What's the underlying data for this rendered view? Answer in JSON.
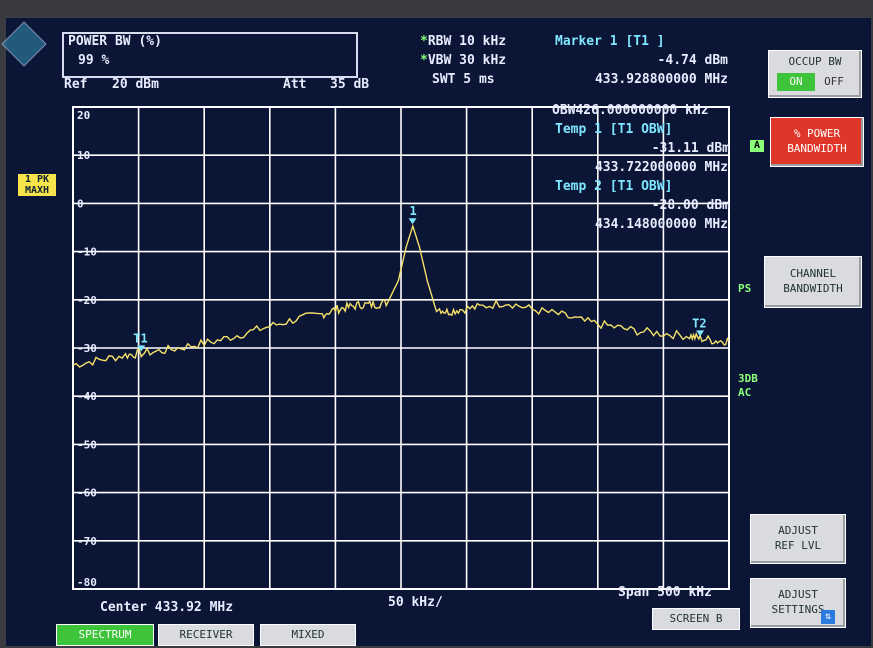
{
  "header": {
    "power_bw_title": "POWER BW (%)",
    "power_bw_value": "99 %",
    "ref_label": "Ref",
    "ref_value": "20 dBm",
    "att_label": "Att",
    "att_value": "35 dB",
    "rbw": "RBW 10 kHz",
    "vbw": "VBW 30 kHz",
    "swt": "SWT 5 ms",
    "marker_title": "Marker 1 [T1 ]",
    "marker_level": "-4.74 dBm",
    "marker_freq": "433.928800000 MHz"
  },
  "readout": {
    "obw": "OBW426.000000000 kHz",
    "temp1_title": "Temp 1 [T1 OBW]",
    "temp1_level": "-31.11 dBm",
    "temp1_freq": "433.722000000 MHz",
    "temp2_title": "Temp 2 [T1 OBW]",
    "temp2_level": "-28.00 dBm",
    "temp2_freq": "434.148000000 MHz"
  },
  "trace_tag": {
    "line1": "1 PK",
    "line2": "MAXH"
  },
  "side_flags": {
    "a": "A",
    "ps": "PS",
    "db3": "3DB",
    "ac": "AC"
  },
  "footer": {
    "center": "Center 433.92 MHz",
    "div": "50 kHz/",
    "span": "Span 500 kHz"
  },
  "softkeys": {
    "occup_bw_title": "OCCUP BW",
    "occup_on": "ON",
    "occup_off": "OFF",
    "power_bw_l1": "% POWER",
    "power_bw_l2": "BANDWIDTH",
    "channel_l1": "CHANNEL",
    "channel_l2": "BANDWIDTH",
    "adjust_ref_l1": "ADJUST",
    "adjust_ref_l2": "REF LVL",
    "adjust_set_l1": "ADJUST",
    "adjust_set_l2": "SETTINGS"
  },
  "tabs": {
    "spectrum": "SPECTRUM",
    "receiver": "RECEIVER",
    "mixed": "MIXED",
    "screen_b": "SCREEN B"
  },
  "colors": {
    "screen_bg": "#0b1536",
    "grid": "#ffffff",
    "trace": "#f5e06a",
    "accent_green": "#3ec43a",
    "accent_red": "#e0362a"
  },
  "chart_data": {
    "type": "line",
    "x_label": "",
    "y_label": "",
    "ylim": [
      -80,
      20
    ],
    "y_ticks": [
      20,
      10,
      0,
      -10,
      -20,
      -30,
      -40,
      -50,
      -60,
      -70,
      -80
    ],
    "y_tick_labels": [
      "20",
      "10",
      "0",
      "-10",
      "-20",
      "-30",
      "-40",
      "-50",
      "-60",
      "-70",
      "-80"
    ],
    "xlim_mhz": [
      433.67,
      434.17
    ],
    "grid": true,
    "series": [
      {
        "x_mhz": [
          433.67,
          433.69,
          433.71,
          433.722,
          433.74,
          433.76,
          433.78,
          433.8,
          433.82,
          433.84,
          433.86,
          433.87,
          433.88,
          433.89,
          433.9,
          433.91,
          433.918,
          433.924,
          433.929,
          433.934,
          433.94,
          433.946,
          433.955,
          433.965,
          433.98,
          434.0,
          434.02,
          434.04,
          434.06,
          434.08,
          434.1,
          434.12,
          434.14,
          434.148,
          434.16,
          434.17
        ],
        "y_dbm": [
          -33.5,
          -32.5,
          -31.5,
          -31.1,
          -30.5,
          -29.5,
          -28.5,
          -27.0,
          -25.5,
          -24.0,
          -23.0,
          -22.0,
          -21.5,
          -21.0,
          -21.0,
          -20.5,
          -16.0,
          -9.0,
          -4.7,
          -9.0,
          -16.0,
          -21.5,
          -22.5,
          -22.0,
          -21.5,
          -20.5,
          -22.0,
          -23.0,
          -24.5,
          -25.5,
          -26.5,
          -27.0,
          -27.5,
          -28.0,
          -28.5,
          -28.5
        ]
      }
    ],
    "markers": [
      {
        "label": "1",
        "x_mhz": 433.9288,
        "y_dbm": -4.74
      },
      {
        "label": "T1",
        "x_mhz": 433.722,
        "y_dbm": -31.11
      },
      {
        "label": "T2",
        "x_mhz": 434.148,
        "y_dbm": -28.0
      }
    ]
  }
}
